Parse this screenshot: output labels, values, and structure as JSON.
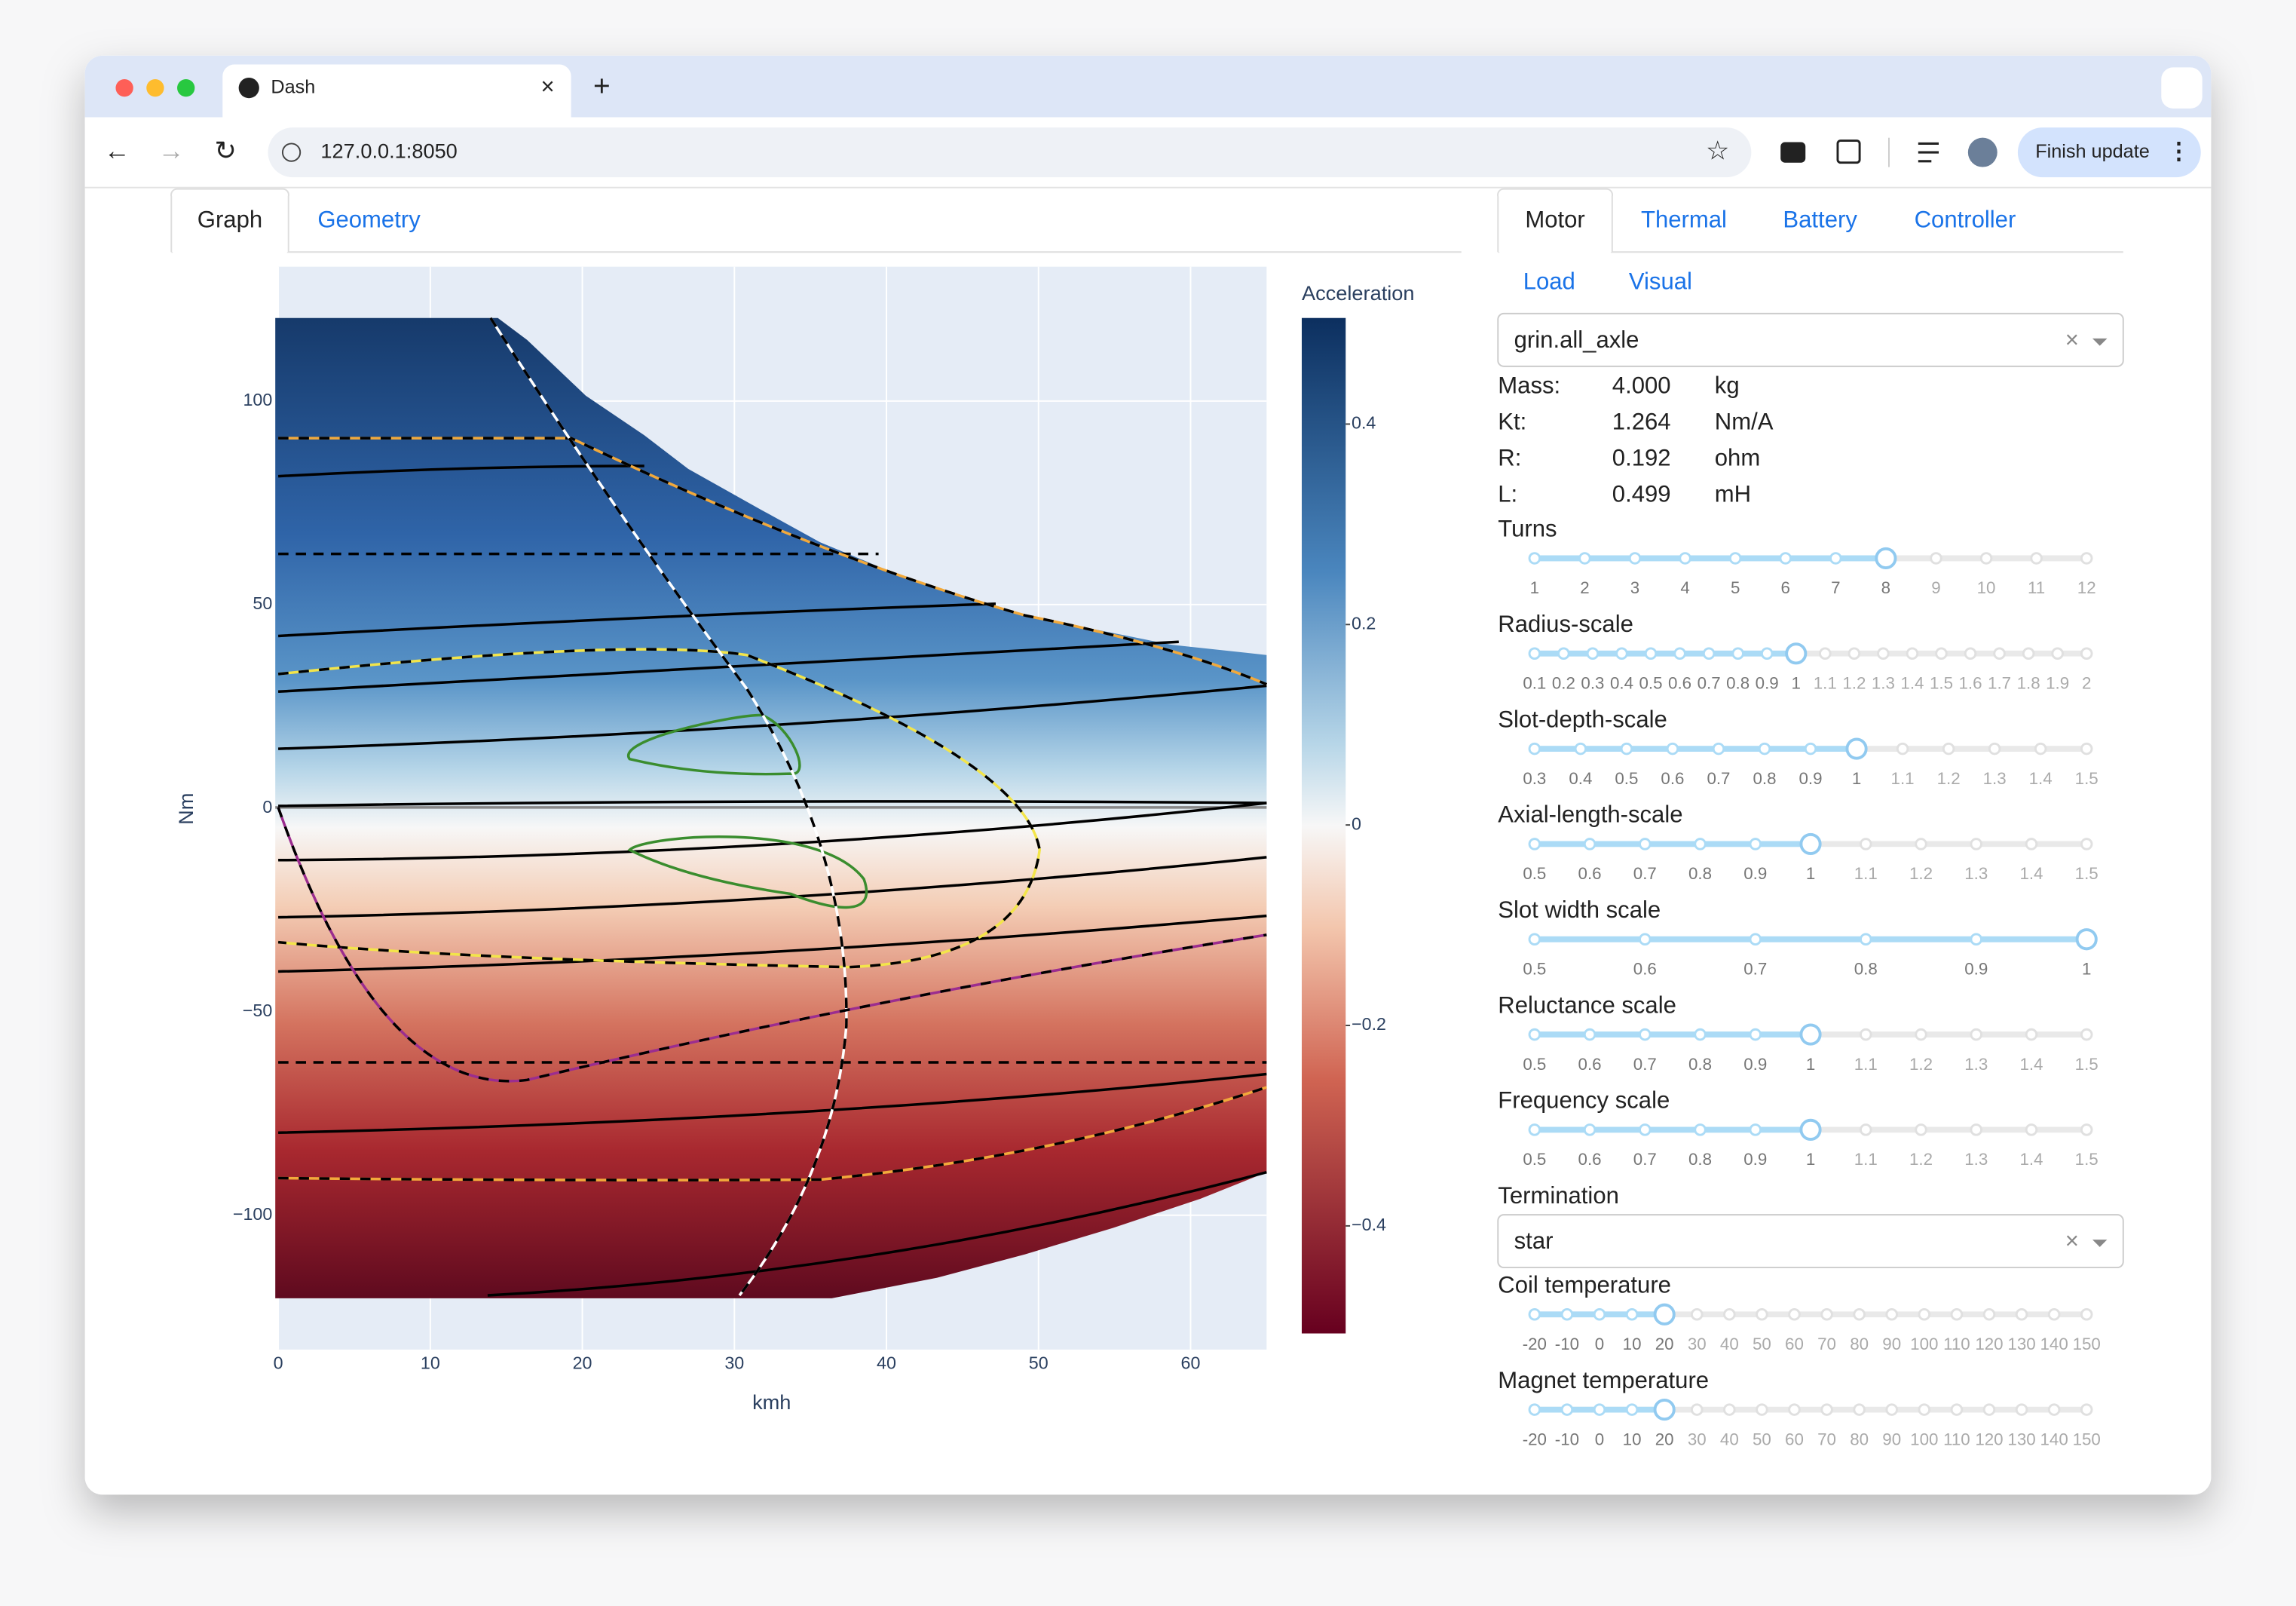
{
  "browser": {
    "tab_title": "Dash",
    "url": "127.0.0.1:8050",
    "update_button": "Finish update"
  },
  "left_tabs": [
    "Graph",
    "Geometry"
  ],
  "chart_data": {
    "type": "heatmap",
    "xlabel": "kmh",
    "ylabel": "Nm",
    "colorbar_title": "Acceleration",
    "xlim": [
      0,
      65
    ],
    "xticks": [
      0,
      10,
      20,
      30,
      40,
      50,
      60
    ],
    "ylim": [
      -133,
      133
    ],
    "yticks": [
      {
        "value": -100,
        "label": "−100"
      },
      {
        "value": -50,
        "label": "−50"
      },
      0,
      50,
      100
    ],
    "colorbar_lim": [
      -0.5,
      0.5
    ],
    "colorbar_ticks": [
      {
        "value": -0.4,
        "label": "−0.4"
      },
      {
        "value": -0.2,
        "label": "−0.2"
      },
      0,
      0.2,
      0.4
    ]
  },
  "right_tabs": [
    "Motor",
    "Thermal",
    "Battery",
    "Controller"
  ],
  "sub_tabs": [
    "Load",
    "Visual"
  ],
  "motor_select": "grin.all_axle",
  "properties": [
    {
      "label": "Mass:",
      "value": "4.000",
      "unit": "kg"
    },
    {
      "label": "Kt:",
      "value": "1.264",
      "unit": "Nm/A"
    },
    {
      "label": "R:",
      "value": "0.192",
      "unit": "ohm"
    },
    {
      "label": "L:",
      "value": "0.499",
      "unit": "mH"
    }
  ],
  "sliders": [
    {
      "label": "Turns",
      "marks": [
        1,
        2,
        3,
        4,
        5,
        6,
        7,
        8,
        9,
        10,
        11,
        12
      ],
      "value": 8
    },
    {
      "label": "Radius-scale",
      "marks": [
        0.1,
        0.2,
        0.3,
        0.4,
        0.5,
        0.6,
        0.7,
        0.8,
        0.9,
        1,
        1.1,
        1.2,
        1.3,
        1.4,
        1.5,
        1.6,
        1.7,
        1.8,
        1.9,
        2
      ],
      "value": 1
    },
    {
      "label": "Slot-depth-scale",
      "marks": [
        0.3,
        0.4,
        0.5,
        0.6,
        0.7,
        0.8,
        0.9,
        1,
        1.1,
        1.2,
        1.3,
        1.4,
        1.5
      ],
      "value": 1
    },
    {
      "label": "Axial-length-scale",
      "marks": [
        0.5,
        0.6,
        0.7,
        0.8,
        0.9,
        1,
        1.1,
        1.2,
        1.3,
        1.4,
        1.5
      ],
      "value": 1
    },
    {
      "label": "Slot width scale",
      "marks": [
        0.5,
        0.6,
        0.7,
        0.8,
        0.9,
        1
      ],
      "value": 1
    },
    {
      "label": "Reluctance scale",
      "marks": [
        0.5,
        0.6,
        0.7,
        0.8,
        0.9,
        1,
        1.1,
        1.2,
        1.3,
        1.4,
        1.5
      ],
      "value": 1
    },
    {
      "label": "Frequency scale",
      "marks": [
        0.5,
        0.6,
        0.7,
        0.8,
        0.9,
        1,
        1.1,
        1.2,
        1.3,
        1.4,
        1.5
      ],
      "value": 1
    }
  ],
  "termination": {
    "label": "Termination",
    "value": "star"
  },
  "temperature_sliders": [
    {
      "label": "Coil temperature",
      "marks": [
        -20,
        -10,
        0,
        10,
        20,
        30,
        40,
        50,
        60,
        70,
        80,
        90,
        100,
        110,
        120,
        130,
        140,
        150
      ],
      "value": 20
    },
    {
      "label": "Magnet temperature",
      "marks": [
        -20,
        -10,
        0,
        10,
        20,
        30,
        40,
        50,
        60,
        70,
        80,
        90,
        100,
        110,
        120,
        130,
        140,
        150
      ],
      "value": 20
    }
  ]
}
